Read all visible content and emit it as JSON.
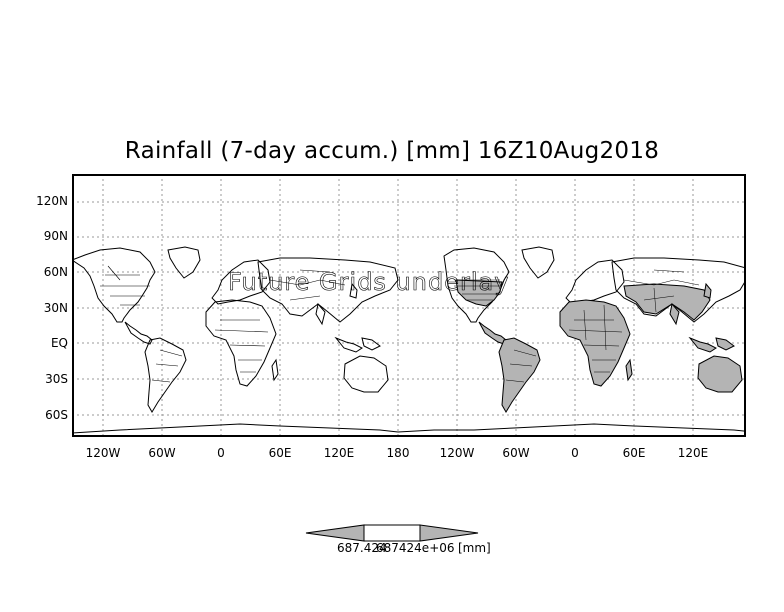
{
  "title": "Rainfall (7-day accum.) [mm] 16Z10Aug2018",
  "lat_labels": [
    "120N",
    "90N",
    "60N",
    "30N",
    "EQ",
    "30S",
    "60S"
  ],
  "lon_labels": [
    "120W",
    "60W",
    "0",
    "60E",
    "120E",
    "180",
    "120W",
    "60W",
    "0",
    "60E",
    "120E"
  ],
  "watermark": "Future Grids underlay",
  "colorbar": {
    "left_value": "687.424",
    "overlap_value": "687424e+06",
    "unit": "[mm]",
    "fill_color": "#b4b4b4"
  },
  "colors": {
    "land_fill": "#b4b4b4",
    "outline": "#000000",
    "grid": "#9a9a9a"
  }
}
